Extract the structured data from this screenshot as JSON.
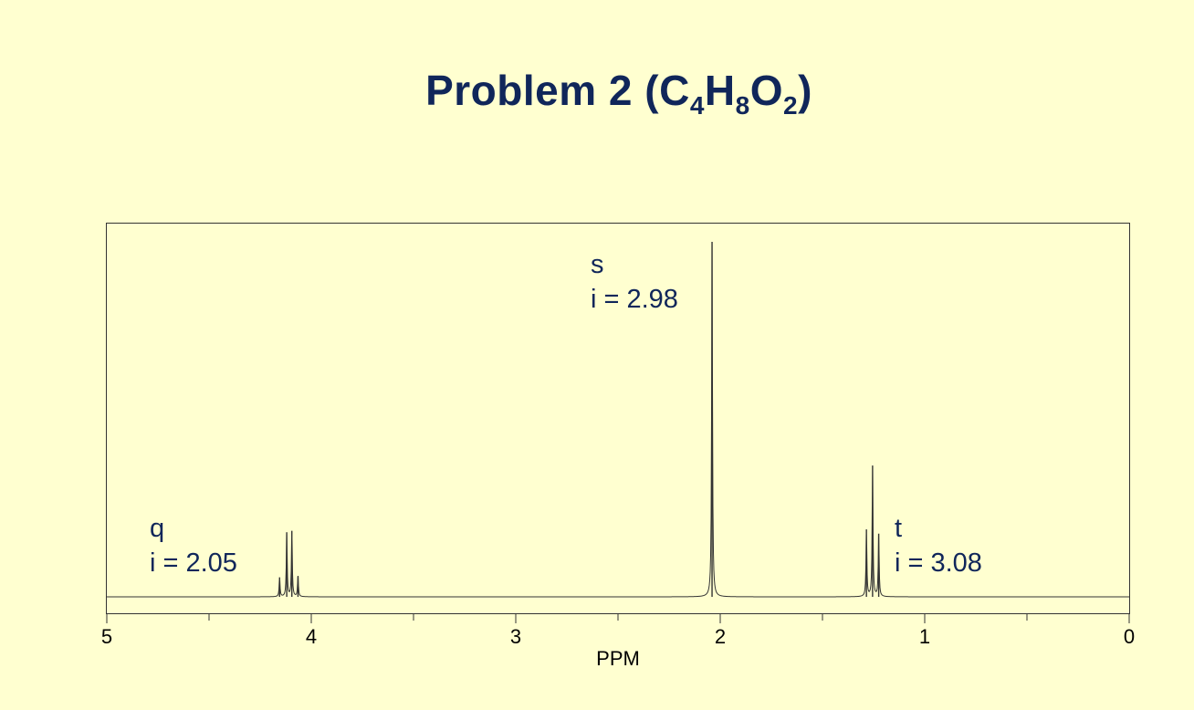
{
  "title": {
    "prefix": "Problem 2 (C",
    "sub1": "4",
    "mid1": "H",
    "sub2": "8",
    "mid2": "O",
    "sub3": "2",
    "suffix": ")"
  },
  "colors": {
    "background": "#ffffd0",
    "title": "#10265a",
    "label": "#10265a",
    "spectrum": "#333333"
  },
  "chart_data": {
    "type": "line",
    "xlabel": "PPM",
    "xlim": [
      5,
      0
    ],
    "x_reversed": true,
    "major_ticks": [
      5,
      4,
      3,
      2,
      1,
      0
    ],
    "tick_labels": [
      "5",
      "4",
      "3",
      "2",
      "1",
      "0"
    ],
    "minor_ticks": [
      4.5,
      3.5,
      2.5,
      1.5,
      0.5
    ],
    "ylim": [
      0,
      1
    ],
    "peaks": [
      {
        "name": "q",
        "label_lines": [
          "q",
          "i = 2.05"
        ],
        "center": 4.12,
        "lines": [
          {
            "ppm": 4.155,
            "height": 0.055
          },
          {
            "ppm": 4.12,
            "height": 0.182
          },
          {
            "ppm": 4.095,
            "height": 0.186
          },
          {
            "ppm": 4.065,
            "height": 0.058
          }
        ]
      },
      {
        "name": "s",
        "label_lines": [
          "s",
          "i = 2.98"
        ],
        "center": 2.04,
        "lines": [
          {
            "ppm": 2.04,
            "height": 1.0
          }
        ]
      },
      {
        "name": "t",
        "label_lines": [
          "t",
          "i = 3.08"
        ],
        "center": 1.255,
        "lines": [
          {
            "ppm": 1.285,
            "height": 0.19
          },
          {
            "ppm": 1.255,
            "height": 0.37
          },
          {
            "ppm": 1.225,
            "height": 0.178
          }
        ]
      }
    ]
  }
}
